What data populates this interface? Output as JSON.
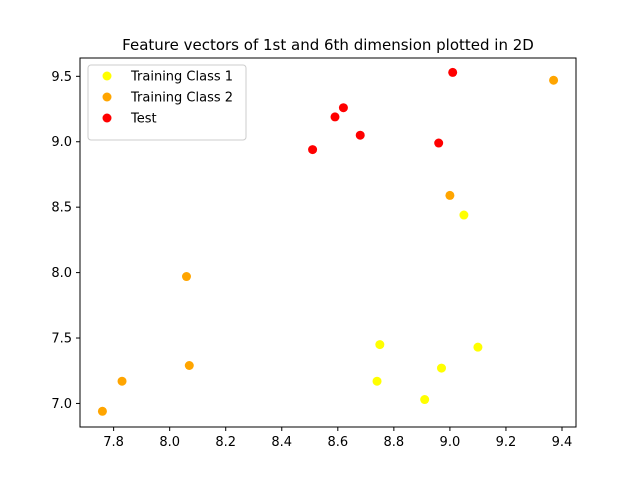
{
  "chart_data": {
    "type": "scatter",
    "title": "Feature vectors of 1st and 6th dimension plotted in 2D",
    "xlabel": "",
    "ylabel": "",
    "xlim": [
      7.68,
      9.45
    ],
    "ylim": [
      6.82,
      9.64
    ],
    "xticks": [
      7.8,
      8.0,
      8.2,
      8.4,
      8.6,
      8.8,
      9.0,
      9.2,
      9.4
    ],
    "yticks": [
      7.0,
      7.5,
      8.0,
      8.5,
      9.0,
      9.5
    ],
    "grid": false,
    "legend_position": "top-left",
    "series": [
      {
        "name": "Training Class 1",
        "color": "#ffff00",
        "points": [
          {
            "x": 9.05,
            "y": 8.44
          },
          {
            "x": 8.75,
            "y": 7.45
          },
          {
            "x": 9.1,
            "y": 7.43
          },
          {
            "x": 8.74,
            "y": 7.17
          },
          {
            "x": 8.97,
            "y": 7.27
          },
          {
            "x": 8.91,
            "y": 7.03
          }
        ]
      },
      {
        "name": "Training Class 2",
        "color": "#ffa500",
        "points": [
          {
            "x": 9.37,
            "y": 9.47
          },
          {
            "x": 9.0,
            "y": 8.59
          },
          {
            "x": 8.06,
            "y": 7.97
          },
          {
            "x": 8.07,
            "y": 7.29
          },
          {
            "x": 7.83,
            "y": 7.17
          },
          {
            "x": 7.76,
            "y": 6.94
          }
        ]
      },
      {
        "name": "Test",
        "color": "#ff0000",
        "points": [
          {
            "x": 9.01,
            "y": 9.53
          },
          {
            "x": 8.62,
            "y": 9.26
          },
          {
            "x": 8.59,
            "y": 9.19
          },
          {
            "x": 8.68,
            "y": 9.05
          },
          {
            "x": 8.96,
            "y": 8.99
          },
          {
            "x": 8.51,
            "y": 8.94
          }
        ]
      }
    ]
  }
}
